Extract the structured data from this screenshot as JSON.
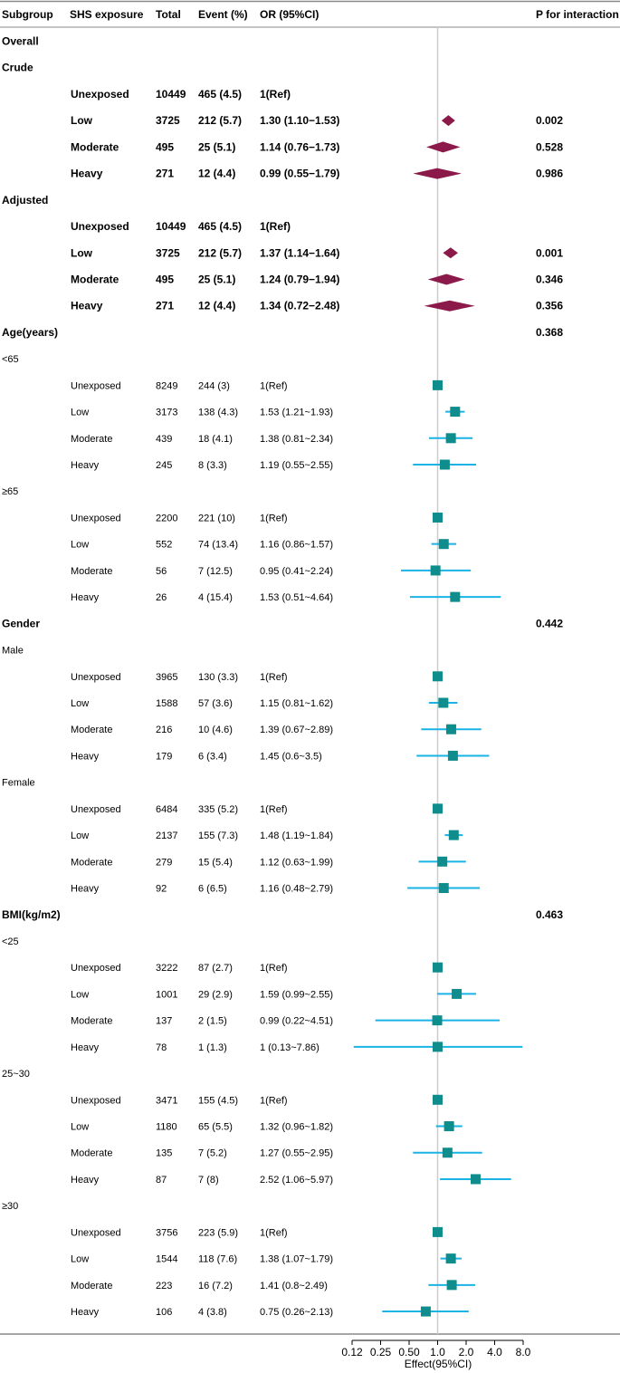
{
  "chart_data": {
    "type": "forest",
    "xlabel": "Effect(95%CI)",
    "xscale": "log2",
    "xlim": [
      0.12,
      8.0
    ],
    "reference_line": 1.0,
    "ticks": [
      {
        "v": 0.125,
        "label": "0.12"
      },
      {
        "v": 0.25,
        "label": "0.25"
      },
      {
        "v": 0.5,
        "label": "0.50"
      },
      {
        "v": 1.0,
        "label": "1.0"
      },
      {
        "v": 2.0,
        "label": "2.0"
      },
      {
        "v": 4.0,
        "label": "4.0"
      },
      {
        "v": 8.0,
        "label": "8.0"
      }
    ],
    "colors": {
      "diamond": "#8b1a4a",
      "square": "#0f8c8c",
      "ci": "#1ab3e6",
      "refline": "#cccccc"
    },
    "headers": {
      "subgroup": "Subgroup",
      "exposure": "SHS exposure",
      "total": "Total",
      "event": "Event (%)",
      "or": "OR (95%CI)",
      "p": "P for interaction"
    },
    "rows": [
      {
        "kind": "section",
        "label": "Overall"
      },
      {
        "kind": "section",
        "label": "Crude"
      },
      {
        "kind": "data",
        "style": "bold",
        "marker": "none",
        "exposure": "Unexposed",
        "total": "10449",
        "event": "465 (4.5)",
        "or_text": "1(Ref)"
      },
      {
        "kind": "data",
        "style": "bold",
        "marker": "diamond",
        "exposure": "Low",
        "total": "3725",
        "event": "212 (5.7)",
        "or_text": "1.30 (1.10−1.53)",
        "or": 1.3,
        "lo": 1.1,
        "hi": 1.53,
        "p": "0.002"
      },
      {
        "kind": "data",
        "style": "bold",
        "marker": "diamond",
        "exposure": "Moderate",
        "total": "495",
        "event": "25 (5.1)",
        "or_text": "1.14 (0.76−1.73)",
        "or": 1.14,
        "lo": 0.76,
        "hi": 1.73,
        "p": "0.528"
      },
      {
        "kind": "data",
        "style": "bold",
        "marker": "diamond",
        "exposure": "Heavy",
        "total": "271",
        "event": "12 (4.4)",
        "or_text": "0.99 (0.55−1.79)",
        "or": 0.99,
        "lo": 0.55,
        "hi": 1.79,
        "p": "0.986"
      },
      {
        "kind": "section",
        "label": "Adjusted"
      },
      {
        "kind": "data",
        "style": "bold",
        "marker": "none",
        "exposure": "Unexposed",
        "total": "10449",
        "event": "465 (4.5)",
        "or_text": "1(Ref)"
      },
      {
        "kind": "data",
        "style": "bold",
        "marker": "diamond",
        "exposure": "Low",
        "total": "3725",
        "event": "212 (5.7)",
        "or_text": "1.37 (1.14−1.64)",
        "or": 1.37,
        "lo": 1.14,
        "hi": 1.64,
        "p": "0.001"
      },
      {
        "kind": "data",
        "style": "bold",
        "marker": "diamond",
        "exposure": "Moderate",
        "total": "495",
        "event": "25 (5.1)",
        "or_text": "1.24 (0.79−1.94)",
        "or": 1.24,
        "lo": 0.79,
        "hi": 1.94,
        "p": "0.346"
      },
      {
        "kind": "data",
        "style": "bold",
        "marker": "diamond",
        "exposure": "Heavy",
        "total": "271",
        "event": "12 (4.4)",
        "or_text": "1.34 (0.72−2.48)",
        "or": 1.34,
        "lo": 0.72,
        "hi": 2.48,
        "p": "0.356"
      },
      {
        "kind": "section",
        "label": "Age(years)",
        "p": "0.368"
      },
      {
        "kind": "sub",
        "label": "<65"
      },
      {
        "kind": "data",
        "marker": "square",
        "exposure": "Unexposed",
        "total": "8249",
        "event": "244 (3)",
        "or_text": "1(Ref)",
        "or": 1,
        "lo": 1,
        "hi": 1
      },
      {
        "kind": "data",
        "marker": "square",
        "exposure": "Low",
        "total": "3173",
        "event": "138 (4.3)",
        "or_text": "1.53 (1.21~1.93)",
        "or": 1.53,
        "lo": 1.21,
        "hi": 1.93
      },
      {
        "kind": "data",
        "marker": "square",
        "exposure": "Moderate",
        "total": "439",
        "event": "18 (4.1)",
        "or_text": "1.38 (0.81~2.34)",
        "or": 1.38,
        "lo": 0.81,
        "hi": 2.34
      },
      {
        "kind": "data",
        "marker": "square",
        "exposure": "Heavy",
        "total": "245",
        "event": "8 (3.3)",
        "or_text": "1.19 (0.55~2.55)",
        "or": 1.19,
        "lo": 0.55,
        "hi": 2.55
      },
      {
        "kind": "sub",
        "label": "≥65"
      },
      {
        "kind": "data",
        "marker": "square",
        "exposure": "Unexposed",
        "total": "2200",
        "event": "221 (10)",
        "or_text": "1(Ref)",
        "or": 1,
        "lo": 1,
        "hi": 1
      },
      {
        "kind": "data",
        "marker": "square",
        "exposure": "Low",
        "total": "552",
        "event": "74 (13.4)",
        "or_text": "1.16 (0.86~1.57)",
        "or": 1.16,
        "lo": 0.86,
        "hi": 1.57
      },
      {
        "kind": "data",
        "marker": "square",
        "exposure": "Moderate",
        "total": "56",
        "event": "7 (12.5)",
        "or_text": "0.95 (0.41~2.24)",
        "or": 0.95,
        "lo": 0.41,
        "hi": 2.24
      },
      {
        "kind": "data",
        "marker": "square",
        "exposure": "Heavy",
        "total": "26",
        "event": "4 (15.4)",
        "or_text": "1.53 (0.51~4.64)",
        "or": 1.53,
        "lo": 0.51,
        "hi": 4.64
      },
      {
        "kind": "section",
        "label": "Gender",
        "p": "0.442"
      },
      {
        "kind": "sub",
        "label": "Male"
      },
      {
        "kind": "data",
        "marker": "square",
        "exposure": "Unexposed",
        "total": "3965",
        "event": "130 (3.3)",
        "or_text": "1(Ref)",
        "or": 1,
        "lo": 1,
        "hi": 1
      },
      {
        "kind": "data",
        "marker": "square",
        "exposure": "Low",
        "total": "1588",
        "event": "57 (3.6)",
        "or_text": "1.15 (0.81~1.62)",
        "or": 1.15,
        "lo": 0.81,
        "hi": 1.62
      },
      {
        "kind": "data",
        "marker": "square",
        "exposure": "Moderate",
        "total": "216",
        "event": "10 (4.6)",
        "or_text": "1.39 (0.67~2.89)",
        "or": 1.39,
        "lo": 0.67,
        "hi": 2.89
      },
      {
        "kind": "data",
        "marker": "square",
        "exposure": "Heavy",
        "total": "179",
        "event": "6 (3.4)",
        "or_text": "1.45 (0.6~3.5)",
        "or": 1.45,
        "lo": 0.6,
        "hi": 3.5
      },
      {
        "kind": "sub",
        "label": "Female"
      },
      {
        "kind": "data",
        "marker": "square",
        "exposure": "Unexposed",
        "total": "6484",
        "event": "335 (5.2)",
        "or_text": "1(Ref)",
        "or": 1,
        "lo": 1,
        "hi": 1
      },
      {
        "kind": "data",
        "marker": "square",
        "exposure": "Low",
        "total": "2137",
        "event": "155 (7.3)",
        "or_text": "1.48 (1.19~1.84)",
        "or": 1.48,
        "lo": 1.19,
        "hi": 1.84
      },
      {
        "kind": "data",
        "marker": "square",
        "exposure": "Moderate",
        "total": "279",
        "event": "15 (5.4)",
        "or_text": "1.12 (0.63~1.99)",
        "or": 1.12,
        "lo": 0.63,
        "hi": 1.99
      },
      {
        "kind": "data",
        "marker": "square",
        "exposure": "Heavy",
        "total": "92",
        "event": "6 (6.5)",
        "or_text": "1.16 (0.48~2.79)",
        "or": 1.16,
        "lo": 0.48,
        "hi": 2.79
      },
      {
        "kind": "section",
        "label": "BMI(kg/m2)",
        "p": "0.463"
      },
      {
        "kind": "sub",
        "label": "<25"
      },
      {
        "kind": "data",
        "marker": "square",
        "exposure": "Unexposed",
        "total": "3222",
        "event": "87 (2.7)",
        "or_text": "1(Ref)",
        "or": 1,
        "lo": 1,
        "hi": 1
      },
      {
        "kind": "data",
        "marker": "square",
        "exposure": "Low",
        "total": "1001",
        "event": "29 (2.9)",
        "or_text": "1.59 (0.99~2.55)",
        "or": 1.59,
        "lo": 0.99,
        "hi": 2.55
      },
      {
        "kind": "data",
        "marker": "square",
        "exposure": "Moderate",
        "total": "137",
        "event": "2 (1.5)",
        "or_text": "0.99 (0.22~4.51)",
        "or": 0.99,
        "lo": 0.22,
        "hi": 4.51
      },
      {
        "kind": "data",
        "marker": "square",
        "exposure": "Heavy",
        "total": "78",
        "event": "1 (1.3)",
        "or_text": "1 (0.13~7.86)",
        "or": 1,
        "lo": 0.13,
        "hi": 7.86
      },
      {
        "kind": "sub",
        "label": "25~30"
      },
      {
        "kind": "data",
        "marker": "square",
        "exposure": "Unexposed",
        "total": "3471",
        "event": "155 (4.5)",
        "or_text": "1(Ref)",
        "or": 1,
        "lo": 1,
        "hi": 1
      },
      {
        "kind": "data",
        "marker": "square",
        "exposure": "Low",
        "total": "1180",
        "event": "65 (5.5)",
        "or_text": "1.32 (0.96~1.82)",
        "or": 1.32,
        "lo": 0.96,
        "hi": 1.82
      },
      {
        "kind": "data",
        "marker": "square",
        "exposure": "Moderate",
        "total": "135",
        "event": "7 (5.2)",
        "or_text": "1.27 (0.55~2.95)",
        "or": 1.27,
        "lo": 0.55,
        "hi": 2.95
      },
      {
        "kind": "data",
        "marker": "square",
        "exposure": "Heavy",
        "total": "87",
        "event": "7 (8)",
        "or_text": "2.52 (1.06~5.97)",
        "or": 2.52,
        "lo": 1.06,
        "hi": 5.97
      },
      {
        "kind": "sub",
        "label": "≥30"
      },
      {
        "kind": "data",
        "marker": "square",
        "exposure": "Unexposed",
        "total": "3756",
        "event": "223 (5.9)",
        "or_text": "1(Ref)",
        "or": 1,
        "lo": 1,
        "hi": 1
      },
      {
        "kind": "data",
        "marker": "square",
        "exposure": "Low",
        "total": "1544",
        "event": "118 (7.6)",
        "or_text": "1.38 (1.07~1.79)",
        "or": 1.38,
        "lo": 1.07,
        "hi": 1.79
      },
      {
        "kind": "data",
        "marker": "square",
        "exposure": "Moderate",
        "total": "223",
        "event": "16 (7.2)",
        "or_text": "1.41 (0.8~2.49)",
        "or": 1.41,
        "lo": 0.8,
        "hi": 2.49
      },
      {
        "kind": "data",
        "marker": "square",
        "exposure": "Heavy",
        "total": "106",
        "event": "4 (3.8)",
        "or_text": "0.75 (0.26~2.13)",
        "or": 0.75,
        "lo": 0.26,
        "hi": 2.13
      }
    ]
  }
}
